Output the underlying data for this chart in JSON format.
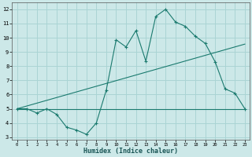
{
  "title": "",
  "xlabel": "Humidex (Indice chaleur)",
  "ylabel": "",
  "bg_color": "#cce8e8",
  "grid_color": "#aad4d4",
  "line_color": "#1a7a6e",
  "xlim": [
    -0.5,
    23.5
  ],
  "ylim": [
    2.8,
    12.5
  ],
  "xticks": [
    0,
    1,
    2,
    3,
    4,
    5,
    6,
    7,
    8,
    9,
    10,
    11,
    12,
    13,
    14,
    15,
    16,
    17,
    18,
    19,
    20,
    21,
    22,
    23
  ],
  "yticks": [
    3,
    4,
    5,
    6,
    7,
    8,
    9,
    10,
    11,
    12
  ],
  "curve1_x": [
    0,
    1,
    2,
    3,
    4,
    5,
    6,
    7,
    8,
    9,
    10,
    11,
    12,
    13,
    14,
    15,
    16,
    17,
    18,
    19,
    20,
    21,
    22,
    23
  ],
  "curve1_y": [
    5.0,
    5.0,
    4.7,
    5.0,
    4.6,
    3.7,
    3.5,
    3.2,
    4.0,
    6.3,
    9.85,
    9.35,
    10.5,
    8.35,
    11.5,
    12.0,
    11.1,
    10.8,
    10.1,
    9.6,
    8.3,
    6.4,
    6.1,
    5.0
  ],
  "curve2_x": [
    0,
    23
  ],
  "curve2_y": [
    5.0,
    9.55
  ],
  "curve3_x": [
    0,
    23
  ],
  "curve3_y": [
    5.0,
    5.0
  ]
}
